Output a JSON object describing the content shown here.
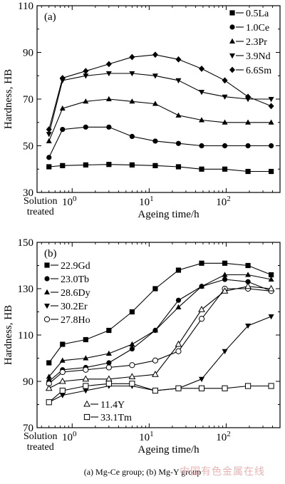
{
  "figure": {
    "caption": "(a) Mg-Ce group; (b) Mg-Y group",
    "watermark": "中国有色金属在线"
  },
  "chart_data": [
    {
      "type": "line",
      "panel_label": "(a)",
      "xlabel": "Ageing time/h",
      "ylabel": "Hardness, HB",
      "xscale": "log",
      "xlim": [
        0.35,
        500
      ],
      "ylim": [
        30,
        110
      ],
      "yticks": [
        30,
        50,
        70,
        90,
        110
      ],
      "xtick_labels": [
        {
          "value": 1,
          "base": "10",
          "exp": "0"
        },
        {
          "value": 10,
          "base": "10",
          "exp": "1"
        },
        {
          "value": 100,
          "base": "10",
          "exp": "2"
        }
      ],
      "extra_xtick": {
        "line1": "Solution",
        "line2": "treated"
      },
      "legend_position": "top-right",
      "x": [
        0.5,
        0.75,
        1.5,
        3,
        6,
        12,
        24,
        48,
        96,
        192,
        384
      ],
      "series": [
        {
          "name": "0.5La",
          "marker": "square",
          "values": [
            41,
            41.5,
            41.8,
            42,
            41.8,
            41.5,
            41,
            40,
            40,
            39,
            39
          ]
        },
        {
          "name": "1.0Ce",
          "marker": "circle",
          "values": [
            45,
            57,
            58,
            58,
            54,
            52,
            51,
            50,
            50,
            50,
            50
          ]
        },
        {
          "name": "2.3Pr",
          "marker": "triangle-up",
          "values": [
            52,
            66,
            69,
            70,
            69,
            68,
            63,
            61,
            60,
            60,
            60
          ]
        },
        {
          "name": "3.9Nd",
          "marker": "triangle-down",
          "values": [
            55,
            78,
            80,
            81,
            81,
            80,
            78,
            73,
            71,
            70,
            70
          ]
        },
        {
          "name": "6.6Sm",
          "marker": "diamond",
          "values": [
            57,
            79,
            82,
            85,
            88,
            89,
            87,
            83,
            78,
            71,
            67
          ]
        }
      ]
    },
    {
      "type": "line",
      "panel_label": "(b)",
      "xlabel": "Ageing time/h",
      "ylabel": "Hardness, HB",
      "xscale": "log",
      "xlim": [
        0.35,
        500
      ],
      "ylim": [
        70,
        150
      ],
      "yticks": [
        70,
        90,
        110,
        130,
        150
      ],
      "xtick_labels": [
        {
          "value": 1,
          "base": "10",
          "exp": "0"
        },
        {
          "value": 10,
          "base": "10",
          "exp": "1"
        },
        {
          "value": 100,
          "base": "10",
          "exp": "2"
        }
      ],
      "extra_xtick": {
        "line1": "Solution",
        "line2": "treated"
      },
      "legend_position": "top-left",
      "legend2_position": "bottom-left",
      "x": [
        0.5,
        0.75,
        1.5,
        3,
        6,
        12,
        24,
        48,
        96,
        192,
        384
      ],
      "series": [
        {
          "name": "22.9Gd",
          "marker": "square",
          "values": [
            98,
            106,
            108,
            112,
            120,
            130,
            138,
            141,
            141,
            140,
            136
          ]
        },
        {
          "name": "23.0Tb",
          "marker": "circle",
          "values": [
            90,
            95,
            96,
            98,
            104,
            112,
            125,
            131,
            134,
            133,
            129
          ]
        },
        {
          "name": "28.6Dy",
          "marker": "triangle-up",
          "values": [
            92,
            99,
            100,
            102,
            106,
            112,
            122,
            131,
            136,
            136,
            134
          ]
        },
        {
          "name": "30.2Er",
          "marker": "triangle-down",
          "values": [
            81,
            84,
            86,
            88,
            88,
            86,
            87,
            91,
            103,
            114,
            118
          ]
        },
        {
          "name": "27.8Ho",
          "marker": "circle-open",
          "values": [
            89,
            94,
            95,
            96,
            97,
            99,
            103,
            117,
            130,
            130,
            129
          ]
        },
        {
          "name": "11.4Y",
          "marker": "triangle-open",
          "values": [
            87,
            90,
            91,
            91,
            92,
            93,
            106,
            121,
            129,
            131,
            130
          ]
        },
        {
          "name": "33.1Tm",
          "marker": "square-open",
          "values": [
            81,
            86,
            88,
            89,
            89,
            86,
            87,
            87,
            87,
            88,
            88
          ]
        }
      ],
      "legend_top": [
        "22.9Gd",
        "23.0Tb",
        "28.6Dy",
        "30.2Er",
        "27.8Ho"
      ],
      "legend_bottom": [
        "11.4Y",
        "33.1Tm"
      ]
    }
  ]
}
